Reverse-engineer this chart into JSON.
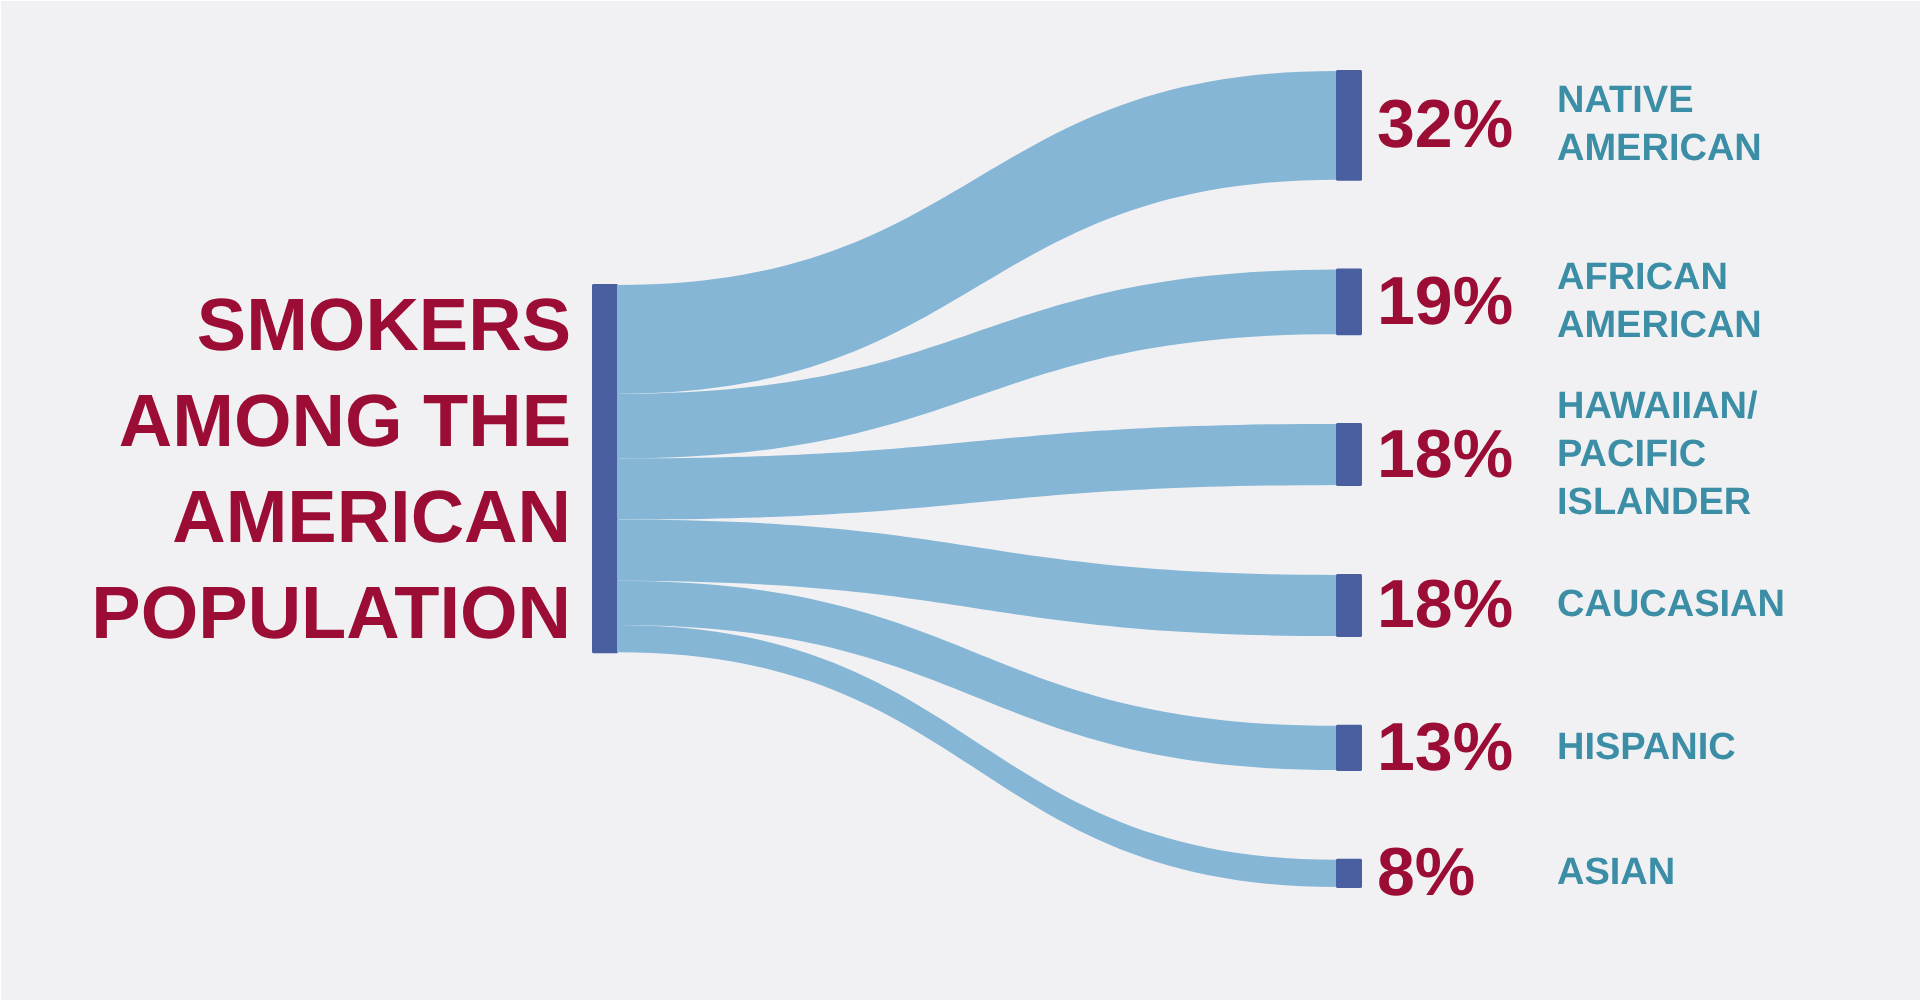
{
  "chart_data": {
    "type": "other",
    "title": "SMOKERS\nAMONG THE\nAMERICAN\nPOPULATION",
    "categories": [
      "NATIVE\nAMERICAN",
      "AFRICAN\nAMERICAN",
      "HAWAIIAN/\nPACIFIC\nISLANDER",
      "CAUCASIAN",
      "HISPANIC",
      "ASIAN"
    ],
    "values": [
      32,
      19,
      18,
      18,
      13,
      8
    ],
    "value_labels": [
      "32%",
      "19%",
      "18%",
      "18%",
      "13%",
      "8%"
    ],
    "color": "#85b6d6"
  }
}
